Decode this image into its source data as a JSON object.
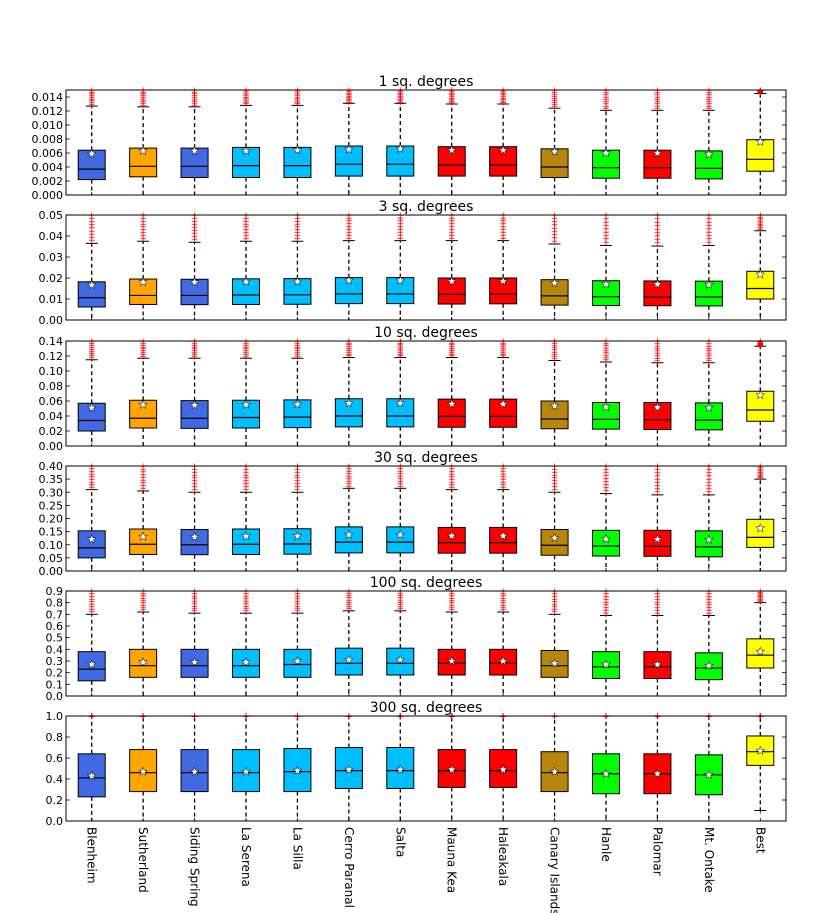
{
  "sites": [
    "Blenheim",
    "Sutherland",
    "Siding Spring",
    "La Serena",
    "La Silla",
    "Cerro Paranal",
    "Salta",
    "Mauna Kea",
    "Haleakala",
    "Canary Islands",
    "Hanle",
    "Palomar",
    "Mt. Ontake",
    "Best"
  ],
  "site_colors": [
    "#4169e1",
    "#ffa500",
    "#4169e1",
    "#00bfff",
    "#00bfff",
    "#00bfff",
    "#00bfff",
    "#ff0000",
    "#ff0000",
    "#b8860b",
    "#00ff00",
    "#ff0000",
    "#00ff00",
    "#ffff00"
  ],
  "chart_data": [
    {
      "type": "box",
      "title": "1 sq. degrees",
      "ylim": [
        0,
        0.015
      ],
      "yticks": [
        "0.000",
        "0.002",
        "0.004",
        "0.006",
        "0.008",
        "0.010",
        "0.012",
        "0.014"
      ],
      "tick_values": [
        0,
        0.002,
        0.004,
        0.006,
        0.008,
        0.01,
        0.012,
        0.014
      ],
      "boxes": [
        {
          "q1": 0.0022,
          "median": 0.0037,
          "q3": 0.0064,
          "mean": 0.0059,
          "whisker_low": 0,
          "whisker_high": 0.0127
        },
        {
          "q1": 0.0026,
          "median": 0.0041,
          "q3": 0.0067,
          "mean": 0.0063,
          "whisker_low": 0,
          "whisker_high": 0.0126
        },
        {
          "q1": 0.0025,
          "median": 0.0041,
          "q3": 0.0067,
          "mean": 0.0063,
          "whisker_low": 0,
          "whisker_high": 0.0126
        },
        {
          "q1": 0.0025,
          "median": 0.0042,
          "q3": 0.0068,
          "mean": 0.0063,
          "whisker_low": 0,
          "whisker_high": 0.0128
        },
        {
          "q1": 0.0025,
          "median": 0.0042,
          "q3": 0.0068,
          "mean": 0.0064,
          "whisker_low": 0,
          "whisker_high": 0.0128
        },
        {
          "q1": 0.0027,
          "median": 0.0044,
          "q3": 0.007,
          "mean": 0.0065,
          "whisker_low": 0,
          "whisker_high": 0.0131
        },
        {
          "q1": 0.0027,
          "median": 0.0044,
          "q3": 0.007,
          "mean": 0.0066,
          "whisker_low": 0,
          "whisker_high": 0.0131
        },
        {
          "q1": 0.0027,
          "median": 0.0043,
          "q3": 0.0069,
          "mean": 0.0064,
          "whisker_low": 0,
          "whisker_high": 0.013
        },
        {
          "q1": 0.0027,
          "median": 0.0043,
          "q3": 0.0069,
          "mean": 0.0064,
          "whisker_low": 0,
          "whisker_high": 0.013
        },
        {
          "q1": 0.0025,
          "median": 0.004,
          "q3": 0.0066,
          "mean": 0.0062,
          "whisker_low": 0,
          "whisker_high": 0.0124
        },
        {
          "q1": 0.0024,
          "median": 0.0039,
          "q3": 0.0064,
          "mean": 0.006,
          "whisker_low": 0,
          "whisker_high": 0.0121
        },
        {
          "q1": 0.0024,
          "median": 0.0039,
          "q3": 0.0064,
          "mean": 0.006,
          "whisker_low": 0,
          "whisker_high": 0.0121
        },
        {
          "q1": 0.0023,
          "median": 0.0038,
          "q3": 0.0063,
          "mean": 0.0058,
          "whisker_low": 0,
          "whisker_high": 0.0121
        },
        {
          "q1": 0.0034,
          "median": 0.0051,
          "q3": 0.0079,
          "mean": 0.0076,
          "whisker_low": 0,
          "whisker_high": 0.0145
        }
      ]
    },
    {
      "type": "box",
      "title": "3 sq. degrees",
      "ylim": [
        0,
        0.05
      ],
      "yticks": [
        "0.00",
        "0.01",
        "0.02",
        "0.03",
        "0.04",
        "0.05"
      ],
      "tick_values": [
        0,
        0.01,
        0.02,
        0.03,
        0.04,
        0.05
      ],
      "boxes": [
        {
          "q1": 0.0062,
          "median": 0.0106,
          "q3": 0.0182,
          "mean": 0.0167,
          "whisker_low": 0,
          "whisker_high": 0.0365
        },
        {
          "q1": 0.0074,
          "median": 0.0117,
          "q3": 0.0195,
          "mean": 0.018,
          "whisker_low": 0,
          "whisker_high": 0.0375
        },
        {
          "q1": 0.0073,
          "median": 0.0117,
          "q3": 0.0194,
          "mean": 0.018,
          "whisker_low": 0,
          "whisker_high": 0.037
        },
        {
          "q1": 0.0074,
          "median": 0.0119,
          "q3": 0.0196,
          "mean": 0.0182,
          "whisker_low": 0,
          "whisker_high": 0.0375
        },
        {
          "q1": 0.0075,
          "median": 0.012,
          "q3": 0.0197,
          "mean": 0.0183,
          "whisker_low": 0,
          "whisker_high": 0.0375
        },
        {
          "q1": 0.0078,
          "median": 0.0124,
          "q3": 0.0202,
          "mean": 0.0188,
          "whisker_low": 0,
          "whisker_high": 0.0378
        },
        {
          "q1": 0.0078,
          "median": 0.0124,
          "q3": 0.0202,
          "mean": 0.0188,
          "whisker_low": 0,
          "whisker_high": 0.0378
        },
        {
          "q1": 0.0076,
          "median": 0.0122,
          "q3": 0.02,
          "mean": 0.0184,
          "whisker_low": 0,
          "whisker_high": 0.0378
        },
        {
          "q1": 0.0077,
          "median": 0.0123,
          "q3": 0.02,
          "mean": 0.0185,
          "whisker_low": 0,
          "whisker_high": 0.0378
        },
        {
          "q1": 0.0071,
          "median": 0.0115,
          "q3": 0.0192,
          "mean": 0.0176,
          "whisker_low": 0,
          "whisker_high": 0.0362
        },
        {
          "q1": 0.0069,
          "median": 0.0111,
          "q3": 0.0187,
          "mean": 0.017,
          "whisker_low": 0,
          "whisker_high": 0.0355
        },
        {
          "q1": 0.0068,
          "median": 0.011,
          "q3": 0.0186,
          "mean": 0.017,
          "whisker_low": 0,
          "whisker_high": 0.0352
        },
        {
          "q1": 0.0067,
          "median": 0.011,
          "q3": 0.0185,
          "mean": 0.0168,
          "whisker_low": 0,
          "whisker_high": 0.0355
        },
        {
          "q1": 0.01,
          "median": 0.015,
          "q3": 0.0232,
          "mean": 0.0217,
          "whisker_low": 0,
          "whisker_high": 0.0425
        }
      ]
    },
    {
      "type": "box",
      "title": "10 sq. degrees",
      "ylim": [
        0,
        0.14
      ],
      "yticks": [
        "0.00",
        "0.02",
        "0.04",
        "0.06",
        "0.08",
        "0.10",
        "0.12",
        "0.14"
      ],
      "tick_values": [
        0,
        0.02,
        0.04,
        0.06,
        0.08,
        0.1,
        0.12,
        0.14
      ],
      "boxes": [
        {
          "q1": 0.02,
          "median": 0.034,
          "q3": 0.057,
          "mean": 0.051,
          "whisker_low": 0,
          "whisker_high": 0.115
        },
        {
          "q1": 0.024,
          "median": 0.037,
          "q3": 0.061,
          "mean": 0.055,
          "whisker_low": 0,
          "whisker_high": 0.117
        },
        {
          "q1": 0.0235,
          "median": 0.037,
          "q3": 0.0605,
          "mean": 0.0545,
          "whisker_low": 0,
          "whisker_high": 0.117
        },
        {
          "q1": 0.024,
          "median": 0.038,
          "q3": 0.061,
          "mean": 0.055,
          "whisker_low": 0,
          "whisker_high": 0.117
        },
        {
          "q1": 0.0245,
          "median": 0.0385,
          "q3": 0.0615,
          "mean": 0.0555,
          "whisker_low": 0,
          "whisker_high": 0.117
        },
        {
          "q1": 0.0255,
          "median": 0.04,
          "q3": 0.063,
          "mean": 0.057,
          "whisker_low": 0,
          "whisker_high": 0.118
        },
        {
          "q1": 0.0255,
          "median": 0.04,
          "q3": 0.063,
          "mean": 0.057,
          "whisker_low": 0,
          "whisker_high": 0.118
        },
        {
          "q1": 0.025,
          "median": 0.0395,
          "q3": 0.0625,
          "mean": 0.056,
          "whisker_low": 0,
          "whisker_high": 0.118
        },
        {
          "q1": 0.025,
          "median": 0.0395,
          "q3": 0.0625,
          "mean": 0.056,
          "whisker_low": 0,
          "whisker_high": 0.118
        },
        {
          "q1": 0.023,
          "median": 0.036,
          "q3": 0.06,
          "mean": 0.0535,
          "whisker_low": 0,
          "whisker_high": 0.114
        },
        {
          "q1": 0.0225,
          "median": 0.0355,
          "q3": 0.058,
          "mean": 0.052,
          "whisker_low": 0,
          "whisker_high": 0.112
        },
        {
          "q1": 0.022,
          "median": 0.035,
          "q3": 0.058,
          "mean": 0.0515,
          "whisker_low": 0,
          "whisker_high": 0.111
        },
        {
          "q1": 0.0215,
          "median": 0.0345,
          "q3": 0.0575,
          "mean": 0.051,
          "whisker_low": 0,
          "whisker_high": 0.111
        },
        {
          "q1": 0.033,
          "median": 0.048,
          "q3": 0.073,
          "mean": 0.068,
          "whisker_low": 0,
          "whisker_high": 0.133
        }
      ]
    },
    {
      "type": "box",
      "title": "30 sq. degrees",
      "ylim": [
        0,
        0.4
      ],
      "yticks": [
        "0.00",
        "0.05",
        "0.10",
        "0.15",
        "0.20",
        "0.25",
        "0.30",
        "0.35",
        "0.40"
      ],
      "tick_values": [
        0,
        0.05,
        0.1,
        0.15,
        0.2,
        0.25,
        0.3,
        0.35,
        0.4
      ],
      "boxes": [
        {
          "q1": 0.05,
          "median": 0.088,
          "q3": 0.153,
          "mean": 0.121,
          "whisker_low": 0,
          "whisker_high": 0.31
        },
        {
          "q1": 0.063,
          "median": 0.102,
          "q3": 0.16,
          "mean": 0.131,
          "whisker_low": 0,
          "whisker_high": 0.305
        },
        {
          "q1": 0.062,
          "median": 0.1,
          "q3": 0.158,
          "mean": 0.13,
          "whisker_low": 0,
          "whisker_high": 0.3
        },
        {
          "q1": 0.063,
          "median": 0.102,
          "q3": 0.16,
          "mean": 0.132,
          "whisker_low": 0,
          "whisker_high": 0.3
        },
        {
          "q1": 0.064,
          "median": 0.103,
          "q3": 0.161,
          "mean": 0.133,
          "whisker_low": 0,
          "whisker_high": 0.3
        },
        {
          "q1": 0.069,
          "median": 0.11,
          "q3": 0.168,
          "mean": 0.138,
          "whisker_low": 0,
          "whisker_high": 0.315
        },
        {
          "q1": 0.069,
          "median": 0.11,
          "q3": 0.168,
          "mean": 0.138,
          "whisker_low": 0,
          "whisker_high": 0.315
        },
        {
          "q1": 0.068,
          "median": 0.108,
          "q3": 0.166,
          "mean": 0.134,
          "whisker_low": 0,
          "whisker_high": 0.31
        },
        {
          "q1": 0.068,
          "median": 0.108,
          "q3": 0.166,
          "mean": 0.134,
          "whisker_low": 0,
          "whisker_high": 0.31
        },
        {
          "q1": 0.06,
          "median": 0.098,
          "q3": 0.158,
          "mean": 0.126,
          "whisker_low": 0,
          "whisker_high": 0.3
        },
        {
          "q1": 0.057,
          "median": 0.095,
          "q3": 0.155,
          "mean": 0.122,
          "whisker_low": 0,
          "whisker_high": 0.295
        },
        {
          "q1": 0.056,
          "median": 0.094,
          "q3": 0.155,
          "mean": 0.121,
          "whisker_low": 0,
          "whisker_high": 0.29
        },
        {
          "q1": 0.054,
          "median": 0.092,
          "q3": 0.153,
          "mean": 0.119,
          "whisker_low": 0,
          "whisker_high": 0.29
        },
        {
          "q1": 0.09,
          "median": 0.128,
          "q3": 0.197,
          "mean": 0.163,
          "whisker_low": 0,
          "whisker_high": 0.35
        }
      ]
    },
    {
      "type": "box",
      "title": "100 sq. degrees",
      "ylim": [
        0,
        0.9
      ],
      "yticks": [
        "0.0",
        "0.1",
        "0.2",
        "0.3",
        "0.4",
        "0.5",
        "0.6",
        "0.7",
        "0.8",
        "0.9"
      ],
      "tick_values": [
        0,
        0.1,
        0.2,
        0.3,
        0.4,
        0.5,
        0.6,
        0.7,
        0.8,
        0.9
      ],
      "boxes": [
        {
          "q1": 0.13,
          "median": 0.23,
          "q3": 0.38,
          "mean": 0.27,
          "whisker_low": 0,
          "whisker_high": 0.7
        },
        {
          "q1": 0.16,
          "median": 0.26,
          "q3": 0.4,
          "mean": 0.29,
          "whisker_low": 0,
          "whisker_high": 0.72
        },
        {
          "q1": 0.16,
          "median": 0.26,
          "q3": 0.4,
          "mean": 0.29,
          "whisker_low": 0,
          "whisker_high": 0.71
        },
        {
          "q1": 0.16,
          "median": 0.26,
          "q3": 0.4,
          "mean": 0.29,
          "whisker_low": 0,
          "whisker_high": 0.71
        },
        {
          "q1": 0.16,
          "median": 0.27,
          "q3": 0.4,
          "mean": 0.3,
          "whisker_low": 0,
          "whisker_high": 0.71
        },
        {
          "q1": 0.18,
          "median": 0.28,
          "q3": 0.41,
          "mean": 0.31,
          "whisker_low": 0,
          "whisker_high": 0.73
        },
        {
          "q1": 0.18,
          "median": 0.28,
          "q3": 0.41,
          "mean": 0.31,
          "whisker_low": 0,
          "whisker_high": 0.73
        },
        {
          "q1": 0.18,
          "median": 0.28,
          "q3": 0.4,
          "mean": 0.3,
          "whisker_low": 0,
          "whisker_high": 0.72
        },
        {
          "q1": 0.18,
          "median": 0.28,
          "q3": 0.4,
          "mean": 0.3,
          "whisker_low": 0,
          "whisker_high": 0.72
        },
        {
          "q1": 0.16,
          "median": 0.26,
          "q3": 0.39,
          "mean": 0.28,
          "whisker_low": 0,
          "whisker_high": 0.7
        },
        {
          "q1": 0.15,
          "median": 0.25,
          "q3": 0.38,
          "mean": 0.27,
          "whisker_low": 0,
          "whisker_high": 0.69
        },
        {
          "q1": 0.15,
          "median": 0.25,
          "q3": 0.38,
          "mean": 0.27,
          "whisker_low": 0,
          "whisker_high": 0.69
        },
        {
          "q1": 0.14,
          "median": 0.24,
          "q3": 0.37,
          "mean": 0.26,
          "whisker_low": 0,
          "whisker_high": 0.69
        },
        {
          "q1": 0.24,
          "median": 0.35,
          "q3": 0.49,
          "mean": 0.38,
          "whisker_low": 0,
          "whisker_high": 0.8
        }
      ]
    },
    {
      "type": "box",
      "title": "300 sq. degrees",
      "ylim": [
        0,
        1.0
      ],
      "yticks": [
        "0.0",
        "0.2",
        "0.4",
        "0.6",
        "0.8",
        "1.0"
      ],
      "tick_values": [
        0,
        0.2,
        0.4,
        0.6,
        0.8,
        1.0
      ],
      "boxes": [
        {
          "q1": 0.23,
          "median": 0.41,
          "q3": 0.64,
          "mean": 0.43,
          "whisker_low": 0,
          "whisker_high": 1.0
        },
        {
          "q1": 0.28,
          "median": 0.46,
          "q3": 0.68,
          "mean": 0.47,
          "whisker_low": 0,
          "whisker_high": 1.0
        },
        {
          "q1": 0.28,
          "median": 0.46,
          "q3": 0.68,
          "mean": 0.47,
          "whisker_low": 0,
          "whisker_high": 1.0
        },
        {
          "q1": 0.28,
          "median": 0.46,
          "q3": 0.68,
          "mean": 0.47,
          "whisker_low": 0,
          "whisker_high": 1.0
        },
        {
          "q1": 0.28,
          "median": 0.47,
          "q3": 0.69,
          "mean": 0.48,
          "whisker_low": 0,
          "whisker_high": 1.0
        },
        {
          "q1": 0.31,
          "median": 0.48,
          "q3": 0.7,
          "mean": 0.49,
          "whisker_low": 0,
          "whisker_high": 1.0
        },
        {
          "q1": 0.31,
          "median": 0.48,
          "q3": 0.7,
          "mean": 0.49,
          "whisker_low": 0,
          "whisker_high": 1.0
        },
        {
          "q1": 0.32,
          "median": 0.48,
          "q3": 0.68,
          "mean": 0.49,
          "whisker_low": 0,
          "whisker_high": 1.0
        },
        {
          "q1": 0.32,
          "median": 0.48,
          "q3": 0.68,
          "mean": 0.49,
          "whisker_low": 0,
          "whisker_high": 1.0
        },
        {
          "q1": 0.28,
          "median": 0.46,
          "q3": 0.66,
          "mean": 0.47,
          "whisker_low": 0,
          "whisker_high": 1.0
        },
        {
          "q1": 0.26,
          "median": 0.45,
          "q3": 0.64,
          "mean": 0.45,
          "whisker_low": 0,
          "whisker_high": 1.0
        },
        {
          "q1": 0.26,
          "median": 0.45,
          "q3": 0.64,
          "mean": 0.45,
          "whisker_low": 0,
          "whisker_high": 1.0
        },
        {
          "q1": 0.25,
          "median": 0.44,
          "q3": 0.63,
          "mean": 0.44,
          "whisker_low": 0,
          "whisker_high": 1.0
        },
        {
          "q1": 0.53,
          "median": 0.66,
          "q3": 0.81,
          "mean": 0.67,
          "whisker_low": 0.1,
          "whisker_high": 1.0
        }
      ]
    }
  ]
}
